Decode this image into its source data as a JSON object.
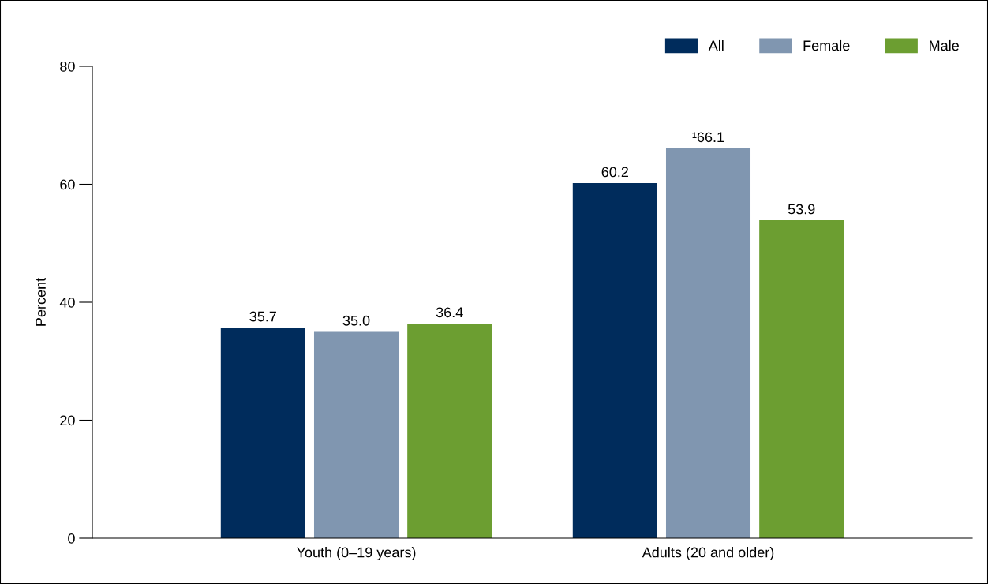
{
  "chart_data": {
    "type": "bar",
    "ylabel": "Percent",
    "categories": [
      "Youth (0–19 years)",
      "Adults (20 and older)"
    ],
    "series": [
      {
        "name": "All",
        "color": "#002c5c",
        "values": [
          35.7,
          60.2
        ]
      },
      {
        "name": "Female",
        "color": "#8096b0",
        "values": [
          35.0,
          66.1
        ],
        "value_labels": [
          "35.0",
          "¹66.1"
        ]
      },
      {
        "name": "Male",
        "color": "#6c9e31",
        "values": [
          36.4,
          53.9
        ]
      }
    ],
    "ylim": [
      0,
      80
    ],
    "yticks": [
      0,
      20,
      40,
      60,
      80
    ],
    "data_labels": true,
    "legend": "top right",
    "grid": false
  }
}
